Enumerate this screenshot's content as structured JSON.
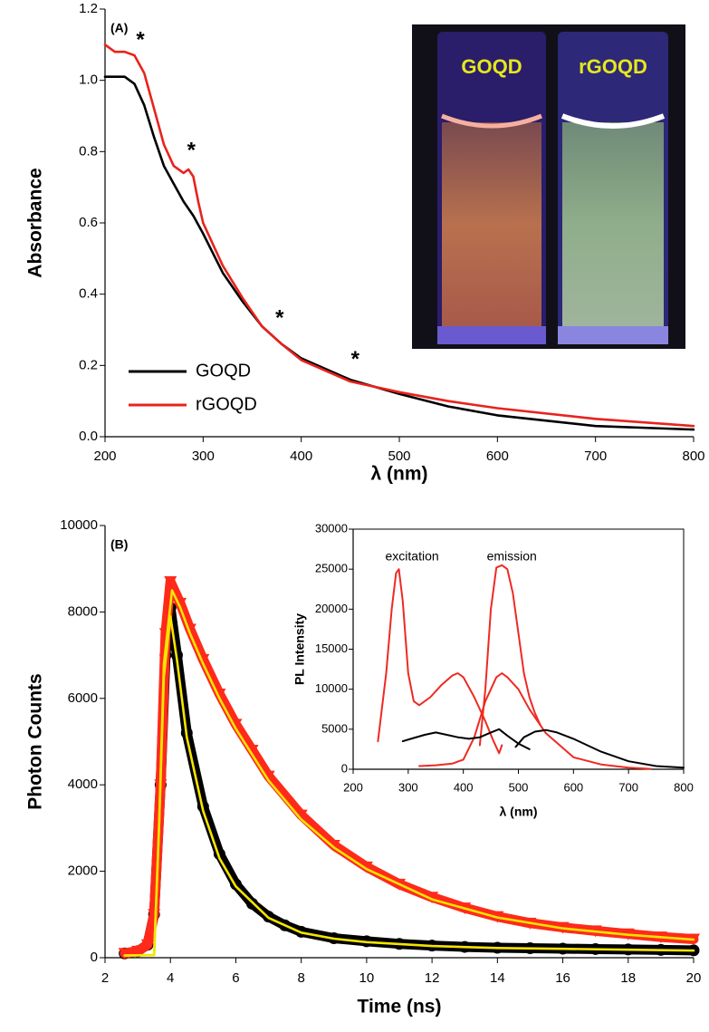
{
  "chart_data": [
    {
      "type": "line",
      "panel_label": "(A)",
      "x_label": "λ (nm)",
      "y_label": "Absorbance",
      "xlim": [
        200,
        800
      ],
      "xticks": [
        200,
        300,
        400,
        500,
        600,
        700,
        800
      ],
      "ylim": [
        0,
        1.2
      ],
      "yticks": [
        {
          "value": 0,
          "label": "0.0"
        },
        0.2,
        0.4,
        0.6,
        0.8,
        {
          "value": 1,
          "label": "1.0"
        },
        1.2
      ],
      "legend": "lower-left",
      "frame": false,
      "series": [
        {
          "name": "GOQD",
          "color": "#000000",
          "x": [
            200,
            210,
            220,
            230,
            240,
            250,
            260,
            270,
            280,
            290,
            300,
            320,
            340,
            360,
            380,
            400,
            450,
            500,
            550,
            600,
            700,
            800
          ],
          "values": [
            1.01,
            1.01,
            1.01,
            0.99,
            0.93,
            0.84,
            0.76,
            0.71,
            0.66,
            0.62,
            0.57,
            0.46,
            0.38,
            0.31,
            0.26,
            0.22,
            0.16,
            0.12,
            0.085,
            0.06,
            0.03,
            0.02
          ]
        },
        {
          "name": "rGOQD",
          "color": "#e8231c",
          "x": [
            200,
            210,
            220,
            230,
            240,
            250,
            260,
            270,
            280,
            285,
            290,
            295,
            300,
            320,
            340,
            360,
            380,
            400,
            450,
            500,
            550,
            600,
            700,
            800
          ],
          "values": [
            1.1,
            1.08,
            1.08,
            1.07,
            1.02,
            0.92,
            0.82,
            0.76,
            0.74,
            0.75,
            0.73,
            0.66,
            0.6,
            0.48,
            0.39,
            0.31,
            0.26,
            0.215,
            0.155,
            0.125,
            0.1,
            0.08,
            0.05,
            0.03
          ]
        }
      ],
      "annotations": [
        {
          "text": "*",
          "x": 236,
          "y": 1.11
        },
        {
          "text": "*",
          "x": 288,
          "y": 0.8
        },
        {
          "text": "*",
          "x": 378,
          "y": 0.33
        },
        {
          "text": "*",
          "x": 455,
          "y": 0.215
        }
      ],
      "inset_image_labels": [
        "GOQD",
        "rGOQD"
      ]
    },
    {
      "type": "line",
      "panel_label": "(B)",
      "x_label": "Time (ns)",
      "y_label": "Photon Counts",
      "xlim": [
        2,
        20
      ],
      "xticks": [
        2,
        4,
        6,
        8,
        10,
        12,
        14,
        16,
        18,
        20
      ],
      "ylim": [
        0,
        10000
      ],
      "yticks": [
        0,
        2000,
        4000,
        6000,
        8000,
        10000
      ],
      "frame": false,
      "series": [
        {
          "color": "#000000",
          "marker": "circle",
          "x": [
            2.6,
            3.0,
            3.3,
            3.5,
            3.7,
            3.85,
            4.0,
            4.2,
            4.5,
            5,
            5.5,
            6,
            6.5,
            7,
            7.5,
            8,
            9,
            10,
            11,
            12,
            13,
            14,
            15,
            16,
            17,
            18,
            19,
            20
          ],
          "values": [
            100,
            150,
            300,
            1000,
            4000,
            7000,
            8100,
            7000,
            5200,
            3500,
            2400,
            1700,
            1250,
            950,
            750,
            600,
            450,
            380,
            320,
            280,
            250,
            230,
            220,
            210,
            200,
            190,
            180,
            170
          ]
        },
        {
          "color": "#ff2a1a",
          "marker": "triangle",
          "x": [
            2.6,
            3.0,
            3.3,
            3.5,
            3.7,
            3.85,
            4.0,
            4.3,
            4.6,
            5,
            5.5,
            6,
            6.5,
            7,
            8,
            9,
            10,
            11,
            12,
            13,
            14,
            15,
            16,
            17,
            18,
            19,
            20
          ],
          "values": [
            100,
            150,
            300,
            1000,
            4000,
            7500,
            8700,
            8200,
            7600,
            6900,
            6100,
            5400,
            4800,
            4200,
            3300,
            2600,
            2100,
            1700,
            1400,
            1150,
            950,
            800,
            700,
            620,
            550,
            480,
            430
          ]
        },
        {
          "color": "#f5e400",
          "x": [
            2.6,
            3.5,
            3.65,
            3.8,
            4.0,
            4.2,
            4.5,
            5,
            5.5,
            6,
            7,
            8,
            9,
            10,
            12,
            14,
            16,
            18,
            20
          ],
          "values": [
            50,
            60,
            3000,
            6500,
            7900,
            6900,
            5100,
            3400,
            2300,
            1650,
            920,
            580,
            440,
            360,
            270,
            225,
            205,
            185,
            165
          ]
        },
        {
          "color": "#f5e400",
          "x": [
            2.6,
            3.5,
            3.65,
            3.8,
            4.05,
            4.3,
            4.6,
            5,
            5.5,
            6,
            7,
            8,
            9,
            10,
            12,
            14,
            16,
            18,
            20
          ],
          "values": [
            50,
            60,
            3000,
            6800,
            8500,
            8100,
            7500,
            6800,
            6000,
            5300,
            4100,
            3200,
            2550,
            2050,
            1350,
            930,
            680,
            530,
            420
          ]
        }
      ]
    },
    {
      "type": "line",
      "x_label": "λ (nm)",
      "y_label": "PL Intensity",
      "xlim": [
        200,
        800
      ],
      "xticks": [
        200,
        300,
        400,
        500,
        600,
        700,
        800
      ],
      "ylim": [
        0,
        30000
      ],
      "yticks": [
        0,
        5000,
        10000,
        15000,
        20000,
        25000,
        30000
      ],
      "frame": true,
      "series": [
        {
          "color": "#ee2a22",
          "x": [
            245,
            260,
            270,
            278,
            283,
            290,
            300,
            310,
            320,
            340,
            360,
            380,
            390,
            400,
            420,
            440,
            455,
            465,
            470
          ],
          "values": [
            3500,
            12000,
            20000,
            24500,
            25000,
            21000,
            12000,
            8500,
            8000,
            9000,
            10500,
            11700,
            12000,
            11500,
            9000,
            6000,
            3500,
            2000,
            3000
          ]
        },
        {
          "color": "#ee2a22",
          "x": [
            430,
            440,
            450,
            460,
            470,
            480,
            490,
            500,
            510,
            520,
            530,
            540
          ],
          "values": [
            3000,
            10000,
            20000,
            25200,
            25500,
            25000,
            22000,
            17000,
            12000,
            9000,
            7000,
            5500
          ]
        },
        {
          "color": "#ee2a22",
          "x": [
            320,
            350,
            380,
            400,
            420,
            440,
            460,
            470,
            480,
            500,
            520,
            550,
            600,
            650,
            700,
            740
          ],
          "values": [
            400,
            500,
            700,
            1200,
            4000,
            8500,
            11500,
            12000,
            11500,
            10000,
            7500,
            4500,
            1500,
            600,
            200,
            50
          ]
        },
        {
          "color": "#000000",
          "x": [
            290,
            310,
            330,
            350,
            370,
            390,
            410,
            430,
            450,
            465,
            480,
            500,
            520
          ],
          "values": [
            3500,
            3900,
            4300,
            4600,
            4300,
            4000,
            3800,
            4000,
            4600,
            5000,
            4200,
            3200,
            2500
          ]
        },
        {
          "color": "#000000",
          "x": [
            495,
            510,
            530,
            550,
            570,
            600,
            650,
            700,
            750,
            800
          ],
          "values": [
            2800,
            4000,
            4700,
            4900,
            4600,
            3800,
            2200,
            1000,
            400,
            200
          ]
        }
      ],
      "annotations": [
        {
          "text": "excitation",
          "x": 307,
          "y": 26500
        },
        {
          "text": "emission",
          "x": 488,
          "y": 26500
        }
      ]
    }
  ]
}
